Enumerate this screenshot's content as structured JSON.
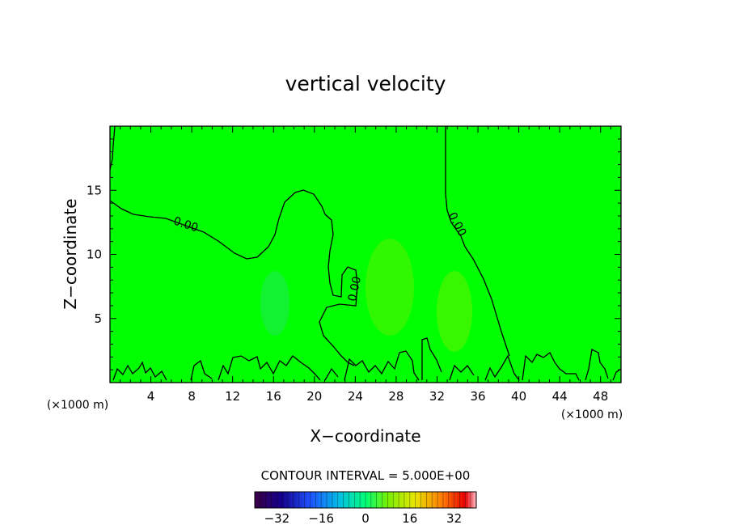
{
  "chart_data": {
    "type": "heatmap",
    "title": "vertical velocity",
    "xlabel": "X−coordinate",
    "ylabel": "Z−coordinate",
    "x_unit_left": "(×1000 m)",
    "x_unit_right": "(×1000 m)",
    "xlim": [
      0,
      50
    ],
    "ylim": [
      0,
      20
    ],
    "x_ticks": [
      4,
      8,
      12,
      16,
      20,
      24,
      28,
      32,
      36,
      40,
      44,
      48
    ],
    "y_ticks": [
      5,
      10,
      15
    ],
    "background_color": "#00ff00",
    "contour_level_label": "0.00",
    "contour_interval_text": "CONTOUR INTERVAL = 5.000E+00",
    "colorbar": {
      "range": [
        -40,
        40
      ],
      "ticks": [
        "−32",
        "−16",
        "0",
        "16",
        "32"
      ],
      "tick_values": [
        -32,
        -16,
        0,
        16,
        32
      ]
    }
  }
}
